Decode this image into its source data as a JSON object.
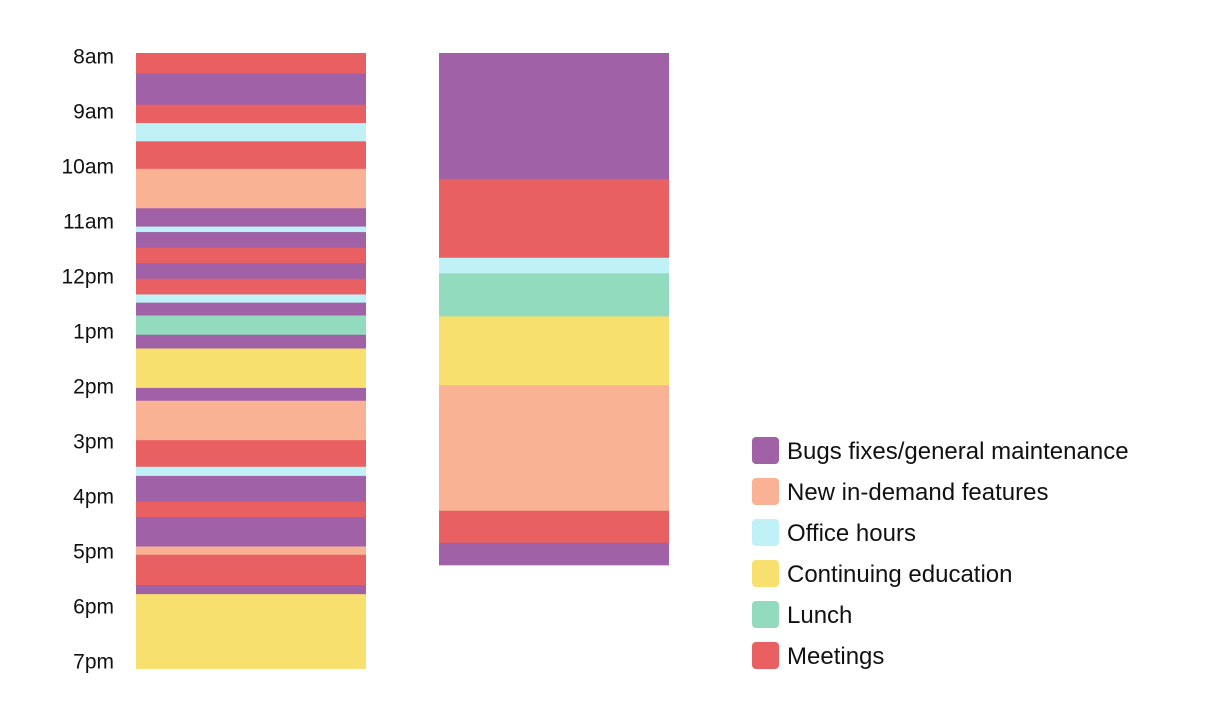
{
  "chart_data": {
    "type": "bar",
    "y_ticks": [
      "8am",
      "9am",
      "10am",
      "11am",
      "12pm",
      "1pm",
      "2pm",
      "3pm",
      "4pm",
      "5pm",
      "6pm",
      "7pm"
    ],
    "ylim": [
      "8am",
      "7pm"
    ],
    "grid": false,
    "legend_position": "bottom-right",
    "categories": [
      {
        "key": "bugs",
        "label": "Bugs fixes/general maintenance",
        "color": "#a061a6"
      },
      {
        "key": "features",
        "label": "New in-demand features",
        "color": "#f9b294"
      },
      {
        "key": "office",
        "label": "Office hours",
        "color": "#bff1f7"
      },
      {
        "key": "education",
        "label": "Continuing education",
        "color": "#f7e06e"
      },
      {
        "key": "lunch",
        "label": "Lunch",
        "color": "#93dbbf"
      },
      {
        "key": "meetings",
        "label": "Meetings",
        "color": "#e96062"
      }
    ],
    "series": [
      {
        "segments": [
          {
            "category": "meetings",
            "start": "8:00",
            "end": "8:18"
          },
          {
            "category": "bugs",
            "start": "8:18",
            "end": "8:52"
          },
          {
            "category": "meetings",
            "start": "8:52",
            "end": "9:12"
          },
          {
            "category": "office",
            "start": "9:12",
            "end": "9:32"
          },
          {
            "category": "meetings",
            "start": "9:32",
            "end": "10:02"
          },
          {
            "category": "features",
            "start": "10:02",
            "end": "10:45"
          },
          {
            "category": "bugs",
            "start": "10:45",
            "end": "11:05"
          },
          {
            "category": "office",
            "start": "11:05",
            "end": "11:11"
          },
          {
            "category": "bugs",
            "start": "11:11",
            "end": "11:28"
          },
          {
            "category": "meetings",
            "start": "11:28",
            "end": "11:45"
          },
          {
            "category": "bugs",
            "start": "11:45",
            "end": "12:02"
          },
          {
            "category": "meetings",
            "start": "12:02",
            "end": "12:19"
          },
          {
            "category": "office",
            "start": "12:19",
            "end": "12:28"
          },
          {
            "category": "bugs",
            "start": "12:28",
            "end": "12:42"
          },
          {
            "category": "lunch",
            "start": "12:42",
            "end": "13:03"
          },
          {
            "category": "bugs",
            "start": "13:03",
            "end": "13:18"
          },
          {
            "category": "education",
            "start": "13:18",
            "end": "14:01"
          },
          {
            "category": "bugs",
            "start": "14:01",
            "end": "14:15"
          },
          {
            "category": "features",
            "start": "14:15",
            "end": "14:58"
          },
          {
            "category": "meetings",
            "start": "14:58",
            "end": "15:27"
          },
          {
            "category": "office",
            "start": "15:27",
            "end": "15:37"
          },
          {
            "category": "bugs",
            "start": "15:37",
            "end": "16:05"
          },
          {
            "category": "meetings",
            "start": "16:05",
            "end": "16:22"
          },
          {
            "category": "bugs",
            "start": "16:22",
            "end": "16:54"
          },
          {
            "category": "features",
            "start": "16:54",
            "end": "17:03"
          },
          {
            "category": "meetings",
            "start": "17:03",
            "end": "17:36"
          },
          {
            "category": "bugs",
            "start": "17:36",
            "end": "17:46"
          },
          {
            "category": "education",
            "start": "17:46",
            "end": "19:07"
          }
        ]
      },
      {
        "segments": [
          {
            "category": "bugs",
            "start": "8:00",
            "end": "10:13"
          },
          {
            "category": "meetings",
            "start": "10:13",
            "end": "11:39"
          },
          {
            "category": "office",
            "start": "11:39",
            "end": "11:56"
          },
          {
            "category": "lunch",
            "start": "11:56",
            "end": "12:43"
          },
          {
            "category": "education",
            "start": "12:43",
            "end": "13:58"
          },
          {
            "category": "features",
            "start": "13:58",
            "end": "16:15"
          },
          {
            "category": "meetings",
            "start": "16:15",
            "end": "16:50"
          },
          {
            "category": "bugs",
            "start": "16:50",
            "end": "17:14"
          }
        ]
      }
    ]
  }
}
